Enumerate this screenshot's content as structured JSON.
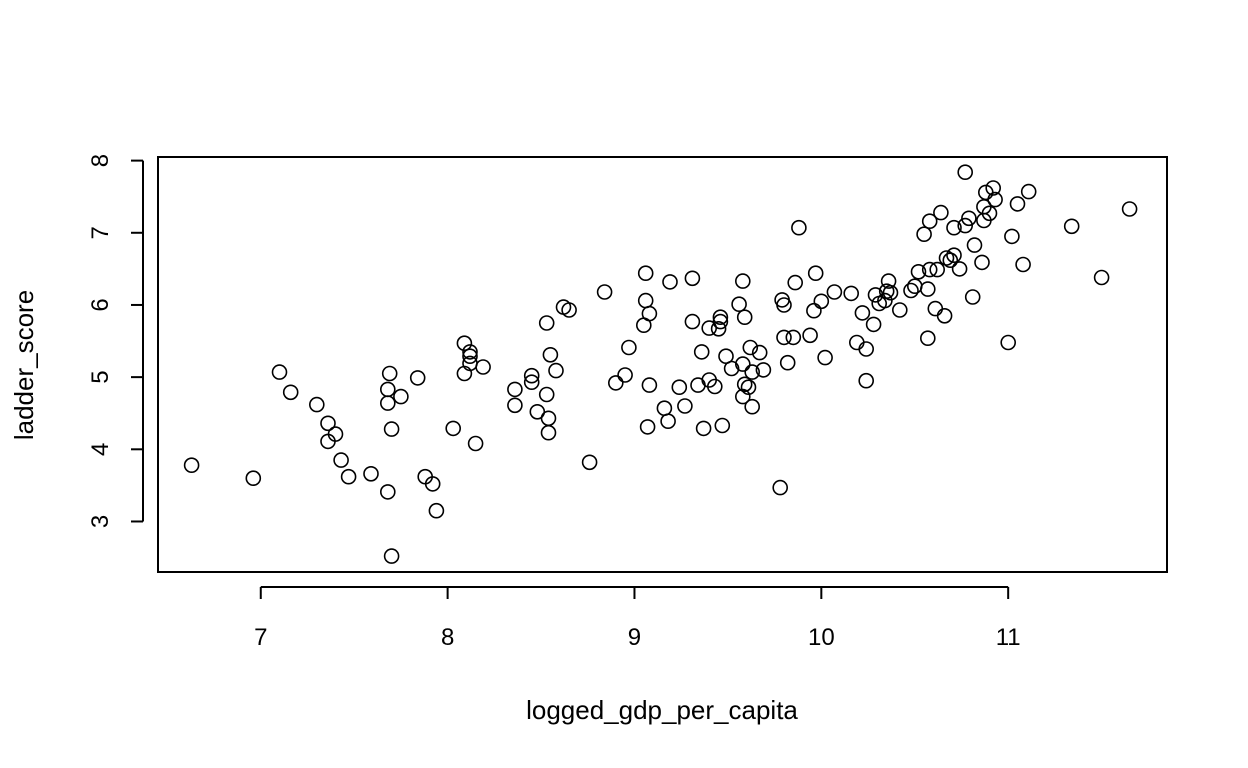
{
  "chart_data": {
    "type": "scatter",
    "title": "",
    "xlabel": "logged_gdp_per_capita",
    "ylabel": "ladder_score",
    "xlim": [
      6.45,
      11.85
    ],
    "ylim": [
      2.3,
      8.05
    ],
    "xticks": [
      7,
      8,
      9,
      10,
      11
    ],
    "yticks": [
      3,
      4,
      5,
      6,
      7,
      8
    ],
    "xtick_labels": [
      "7",
      "8",
      "9",
      "10",
      "11"
    ],
    "ytick_labels": [
      "3",
      "4",
      "5",
      "6",
      "7",
      "8"
    ],
    "marker": "open-circle",
    "point_color": "#000000",
    "points": [
      [
        6.63,
        3.78
      ],
      [
        6.96,
        3.6
      ],
      [
        7.1,
        5.07
      ],
      [
        7.16,
        4.79
      ],
      [
        7.3,
        4.62
      ],
      [
        7.36,
        4.36
      ],
      [
        7.36,
        4.11
      ],
      [
        7.4,
        4.21
      ],
      [
        7.43,
        3.85
      ],
      [
        7.47,
        3.62
      ],
      [
        7.59,
        3.66
      ],
      [
        7.68,
        3.41
      ],
      [
        7.68,
        4.64
      ],
      [
        7.68,
        4.83
      ],
      [
        7.69,
        5.05
      ],
      [
        7.7,
        4.28
      ],
      [
        7.7,
        2.52
      ],
      [
        7.75,
        4.73
      ],
      [
        7.84,
        4.99
      ],
      [
        7.88,
        3.62
      ],
      [
        7.92,
        3.52
      ],
      [
        7.94,
        3.15
      ],
      [
        8.03,
        4.29
      ],
      [
        8.09,
        5.47
      ],
      [
        8.09,
        5.05
      ],
      [
        8.12,
        5.35
      ],
      [
        8.12,
        5.29
      ],
      [
        8.12,
        5.19
      ],
      [
        8.15,
        4.08
      ],
      [
        8.19,
        5.14
      ],
      [
        8.36,
        4.61
      ],
      [
        8.36,
        4.83
      ],
      [
        8.45,
        5.02
      ],
      [
        8.45,
        4.93
      ],
      [
        8.48,
        4.52
      ],
      [
        8.53,
        5.75
      ],
      [
        8.53,
        4.76
      ],
      [
        8.54,
        4.43
      ],
      [
        8.54,
        4.23
      ],
      [
        8.55,
        5.31
      ],
      [
        8.58,
        5.09
      ],
      [
        8.62,
        5.97
      ],
      [
        8.65,
        5.93
      ],
      [
        8.76,
        3.82
      ],
      [
        8.84,
        6.18
      ],
      [
        8.9,
        4.92
      ],
      [
        8.95,
        5.03
      ],
      [
        8.97,
        5.41
      ],
      [
        9.05,
        5.72
      ],
      [
        9.06,
        6.44
      ],
      [
        9.06,
        6.06
      ],
      [
        9.07,
        4.31
      ],
      [
        9.08,
        5.88
      ],
      [
        9.08,
        4.89
      ],
      [
        9.16,
        4.57
      ],
      [
        9.18,
        4.39
      ],
      [
        9.19,
        6.32
      ],
      [
        9.24,
        4.86
      ],
      [
        9.27,
        4.6
      ],
      [
        9.31,
        6.37
      ],
      [
        9.31,
        5.77
      ],
      [
        9.34,
        4.89
      ],
      [
        9.36,
        5.35
      ],
      [
        9.37,
        4.29
      ],
      [
        9.4,
        5.68
      ],
      [
        9.4,
        4.96
      ],
      [
        9.43,
        4.87
      ],
      [
        9.45,
        5.67
      ],
      [
        9.46,
        5.83
      ],
      [
        9.46,
        5.77
      ],
      [
        9.47,
        4.33
      ],
      [
        9.49,
        5.29
      ],
      [
        9.52,
        5.12
      ],
      [
        9.56,
        6.01
      ],
      [
        9.58,
        6.33
      ],
      [
        9.58,
        5.18
      ],
      [
        9.58,
        4.73
      ],
      [
        9.59,
        4.9
      ],
      [
        9.59,
        5.83
      ],
      [
        9.61,
        4.86
      ],
      [
        9.62,
        5.41
      ],
      [
        9.63,
        4.59
      ],
      [
        9.63,
        5.07
      ],
      [
        9.67,
        5.34
      ],
      [
        9.69,
        5.1
      ],
      [
        9.78,
        3.47
      ],
      [
        9.79,
        6.07
      ],
      [
        9.8,
        6.0
      ],
      [
        9.8,
        5.55
      ],
      [
        9.82,
        5.2
      ],
      [
        9.85,
        5.55
      ],
      [
        9.86,
        6.31
      ],
      [
        9.88,
        7.07
      ],
      [
        9.94,
        5.58
      ],
      [
        9.96,
        5.92
      ],
      [
        9.97,
        6.44
      ],
      [
        10.0,
        6.05
      ],
      [
        10.02,
        5.27
      ],
      [
        10.07,
        6.18
      ],
      [
        10.16,
        6.16
      ],
      [
        10.19,
        5.48
      ],
      [
        10.22,
        5.89
      ],
      [
        10.24,
        5.39
      ],
      [
        10.24,
        4.95
      ],
      [
        10.28,
        5.73
      ],
      [
        10.29,
        6.14
      ],
      [
        10.31,
        6.02
      ],
      [
        10.34,
        6.06
      ],
      [
        10.35,
        6.19
      ],
      [
        10.36,
        6.33
      ],
      [
        10.37,
        6.17
      ],
      [
        10.42,
        5.93
      ],
      [
        10.48,
        6.2
      ],
      [
        10.5,
        6.26
      ],
      [
        10.52,
        6.46
      ],
      [
        10.55,
        6.98
      ],
      [
        10.57,
        5.54
      ],
      [
        10.57,
        6.22
      ],
      [
        10.58,
        7.16
      ],
      [
        10.58,
        6.49
      ],
      [
        10.61,
        5.95
      ],
      [
        10.62,
        6.49
      ],
      [
        10.64,
        7.28
      ],
      [
        10.66,
        5.85
      ],
      [
        10.67,
        6.65
      ],
      [
        10.69,
        6.62
      ],
      [
        10.71,
        7.07
      ],
      [
        10.71,
        6.69
      ],
      [
        10.74,
        6.5
      ],
      [
        10.77,
        7.84
      ],
      [
        10.77,
        7.1
      ],
      [
        10.79,
        7.2
      ],
      [
        10.81,
        6.11
      ],
      [
        10.82,
        6.83
      ],
      [
        10.86,
        6.59
      ],
      [
        10.87,
        7.36
      ],
      [
        10.87,
        7.17
      ],
      [
        10.88,
        7.56
      ],
      [
        10.9,
        7.27
      ],
      [
        10.92,
        7.62
      ],
      [
        10.93,
        7.46
      ],
      [
        11.0,
        5.48
      ],
      [
        11.02,
        6.95
      ],
      [
        11.05,
        7.4
      ],
      [
        11.08,
        6.56
      ],
      [
        11.11,
        7.57
      ],
      [
        11.34,
        7.09
      ],
      [
        11.5,
        6.38
      ],
      [
        11.65,
        7.33
      ]
    ]
  }
}
